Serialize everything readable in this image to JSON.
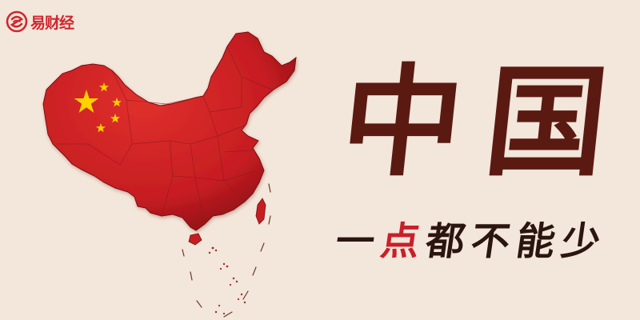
{
  "brand": {
    "name": "易财经",
    "icon": "swirl-logo-icon",
    "color": "#d0262f"
  },
  "headline": {
    "chars": [
      "中",
      "国"
    ],
    "color": "#5a1a12"
  },
  "slogan": {
    "chars": [
      "一",
      "点",
      "都",
      "不",
      "能",
      "少"
    ],
    "highlight_index": 1,
    "color": "#2b150f",
    "highlight_color": "#c8202a"
  },
  "map": {
    "icon": "china-map-icon",
    "fill": "#c81e24",
    "star_icon": "star-icon",
    "star_color": "#ffd200"
  },
  "background": "#f3e6da"
}
